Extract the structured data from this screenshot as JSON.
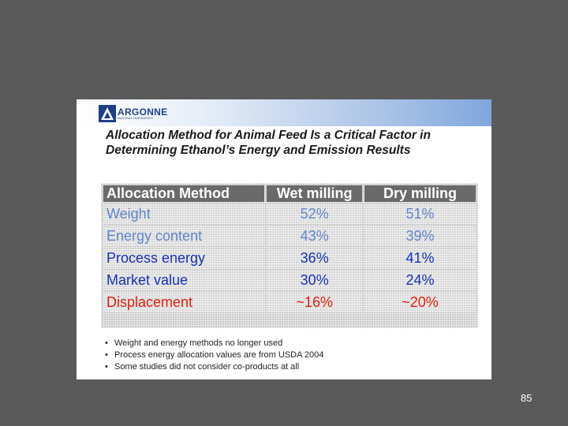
{
  "logo": {
    "name": "ARGONNE",
    "subtitle": "NATIONAL LABORATORY"
  },
  "title": "Allocation Method for Animal Feed Is a Critical Factor in Determining Ethanol’s Energy and Emission Results",
  "table": {
    "headers": [
      "Allocation Method",
      "Wet milling",
      "Dry milling"
    ],
    "rows": [
      {
        "method": "Weight",
        "wet": "52%",
        "dry": "51%"
      },
      {
        "method": "Energy content",
        "wet": "43%",
        "dry": "39%"
      },
      {
        "method": "Process energy",
        "wet": "36%",
        "dry": "41%"
      },
      {
        "method": "Market value",
        "wet": "30%",
        "dry": "24%"
      },
      {
        "method": "Displacement",
        "wet": "~16%",
        "dry": "~20%"
      }
    ]
  },
  "bullets": [
    "Weight and energy methods no longer used",
    "Process energy allocation values are from USDA 2004",
    "Some studies did not consider co-products at all"
  ],
  "colors": {
    "background": "#5a5a5a",
    "header_cell": "#6a6a6a",
    "light_blue_text": "#5f86c8",
    "dark_blue_text": "#1830b8",
    "red_text": "#e02010"
  },
  "page_number": "85"
}
